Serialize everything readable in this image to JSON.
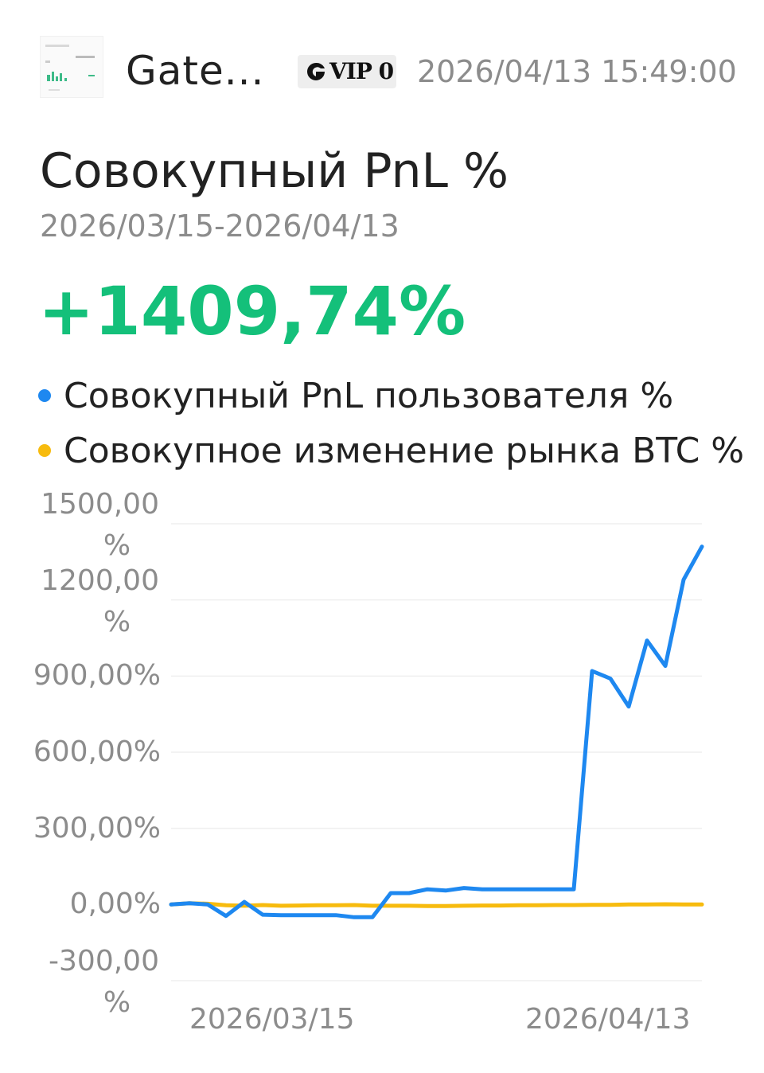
{
  "header": {
    "username": "Gate...",
    "vip_label": "VIP 0",
    "timestamp": "2026/04/13 15:49:00"
  },
  "title": "Совокупный PnL %",
  "date_range": "2026/03/15-2026/04/13",
  "pnl_value": "+1409,74%",
  "colors": {
    "user_series": "#1e88f0",
    "btc_series": "#f7bb0e",
    "positive": "#14c07a"
  },
  "icons": {
    "vip": "gate-logo-icon",
    "avatar": "avatar-thumbnail"
  },
  "chart_data": {
    "type": "line",
    "legend": [
      "Совокупный PnL пользователя %",
      "Совокупное изменение рынка BTC %"
    ],
    "y_ticks": [
      "1500,00 %",
      "1200,00 %",
      "900,00%",
      "600,00%",
      "300,00%",
      "0,00%",
      "-300,00 %"
    ],
    "x_ticks": [
      "2026/03/15",
      "2026/04/13"
    ],
    "ylim": [
      -300,
      1500
    ],
    "grid": true,
    "series": [
      {
        "name": "Совокупный PnL пользователя %",
        "color": "#1e88f0",
        "values": [
          0,
          5,
          0,
          -45,
          10,
          -40,
          -42,
          -42,
          -42,
          -42,
          -50,
          -50,
          45,
          45,
          60,
          55,
          65,
          60,
          60,
          60,
          60,
          60,
          60,
          920,
          890,
          780,
          1040,
          940,
          1280,
          1410
        ]
      },
      {
        "name": "Совокупное изменение рынка BTC %",
        "color": "#f7bb0e",
        "values": [
          0,
          5,
          3,
          -3,
          -5,
          -2,
          -5,
          -4,
          -3,
          -3,
          -2,
          -5,
          -5,
          -5,
          -6,
          -6,
          -5,
          -4,
          -4,
          -3,
          -3,
          -2,
          -2,
          -1,
          -1,
          0,
          0,
          1,
          0,
          0
        ]
      }
    ]
  }
}
